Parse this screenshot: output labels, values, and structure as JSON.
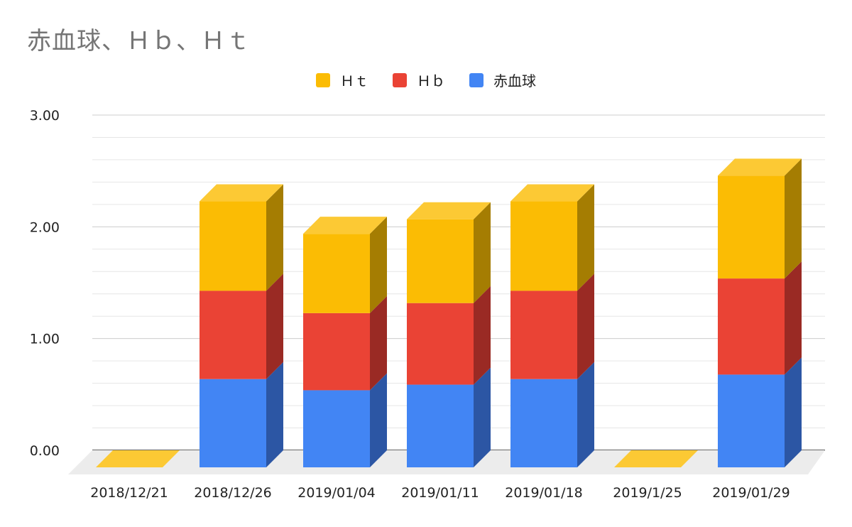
{
  "chart_data": {
    "type": "bar",
    "subtype": "stacked-3d",
    "title": "赤血球、Ｈｂ、Ｈｔ",
    "xlabel": "",
    "ylabel": "",
    "ylim": [
      0,
      3
    ],
    "yticks": [
      "0.00",
      "1.00",
      "2.00",
      "3.00"
    ],
    "grid": true,
    "legend_position": "top",
    "categories": [
      "2018/12/21",
      "2018/12/26",
      "2019/01/04",
      "2019/01/11",
      "2019/01/18",
      "2019/1/25",
      "2019/01/29"
    ],
    "series": [
      {
        "name": "赤血球",
        "color": "#4285F4",
        "side_color": "#2C56A4",
        "values": [
          0,
          0.79,
          0.69,
          0.74,
          0.79,
          0,
          0.83
        ]
      },
      {
        "name": "Ｈｂ",
        "color": "#EA4335",
        "side_color": "#9A2A24",
        "values": [
          0,
          0.79,
          0.69,
          0.73,
          0.79,
          0,
          0.86
        ]
      },
      {
        "name": "Ｈｔ",
        "color": "#FBBC04",
        "side_color": "#A57D02",
        "top_color": "#FCC934",
        "values": [
          0,
          0.8,
          0.71,
          0.75,
          0.8,
          0,
          0.92
        ]
      }
    ],
    "legend_order": [
      "Ｈｔ",
      "Ｈｂ",
      "赤血球"
    ]
  }
}
